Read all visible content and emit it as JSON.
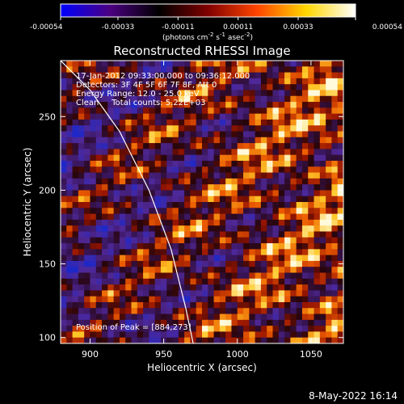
{
  "chart_data": {
    "type": "heatmap",
    "title": "Reconstructed RHESSI Image",
    "xlabel": "Heliocentric X (arcsec)",
    "ylabel": "Heliocentric Y (arcsec)",
    "xlim": [
      880,
      1072
    ],
    "ylim": [
      96,
      288
    ],
    "x_ticks": [
      900,
      950,
      1000,
      1050
    ],
    "y_ticks": [
      100,
      150,
      200,
      250
    ],
    "colorbar": {
      "range": [
        -0.00054,
        0.00054
      ],
      "tick_values": [
        -0.00054,
        -0.00033,
        -0.00011,
        0.00011,
        0.00033,
        0.00054
      ],
      "tick_labels": [
        "-0.00054",
        "-0.00033",
        "-0.00011",
        "0.00011",
        "0.00033",
        "0.00054"
      ],
      "label_main": "(photons cm",
      "label_exp1": "-2",
      "label_mid": " s",
      "label_exp2": "-1",
      "label_tail": " asec",
      "label_exp3": "-2",
      "label_close": ")",
      "colors": [
        "#0000ff",
        "#4b0082",
        "#000000",
        "#800000",
        "#ff4500",
        "#ffd700",
        "#ffffff"
      ]
    },
    "annotations": [
      "17-Jan-2012 09:33:00.000 to 09:36:12.000",
      "Detectors: 3F 4F 5F 6F 7F 8F, Att 0",
      "Energy Range: 12.0 - 25.0 keV",
      "Clean     Total counts: 5.22E+03"
    ],
    "peak_label": "Position of Peak = [884,273]",
    "peak": [
      884,
      273
    ],
    "limb_curve": {
      "x": [
        880,
        900,
        920,
        940,
        955,
        965,
        970
      ],
      "y": [
        288,
        268,
        240,
        200,
        160,
        120,
        96
      ]
    },
    "grid": false,
    "legend": "none"
  },
  "footer": {
    "timestamp": "8-May-2022 16:14"
  }
}
